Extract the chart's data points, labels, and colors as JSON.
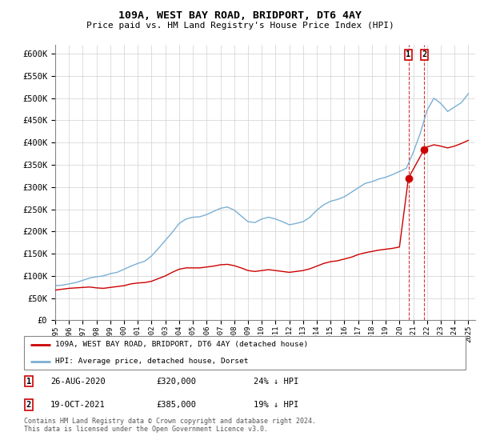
{
  "title": "109A, WEST BAY ROAD, BRIDPORT, DT6 4AY",
  "subtitle": "Price paid vs. HM Land Registry's House Price Index (HPI)",
  "hpi_label": "HPI: Average price, detached house, Dorset",
  "property_label": "109A, WEST BAY ROAD, BRIDPORT, DT6 4AY (detached house)",
  "hpi_color": "#7ab0d4",
  "property_color": "#cc0000",
  "marker_color": "#cc0000",
  "dashed_line_color": "#cc0000",
  "transaction1": {
    "date": "26-AUG-2020",
    "price": 320000,
    "pct": "24% ↓ HPI",
    "year": 2020.65
  },
  "transaction2": {
    "date": "19-OCT-2021",
    "price": 385000,
    "pct": "19% ↓ HPI",
    "year": 2021.8
  },
  "ylim": [
    0,
    620000
  ],
  "yticks": [
    0,
    50000,
    100000,
    150000,
    200000,
    250000,
    300000,
    350000,
    400000,
    450000,
    500000,
    550000,
    600000
  ],
  "footer": "Contains HM Land Registry data © Crown copyright and database right 2024.\nThis data is licensed under the Open Government Licence v3.0.",
  "hpi_years": [
    1995,
    1995.5,
    1996,
    1996.5,
    1997,
    1997.5,
    1998,
    1998.5,
    1999,
    1999.5,
    2000,
    2000.5,
    2001,
    2001.5,
    2002,
    2002.5,
    2003,
    2003.5,
    2004,
    2004.5,
    2005,
    2005.5,
    2006,
    2006.5,
    2007,
    2007.5,
    2008,
    2008.5,
    2009,
    2009.5,
    2010,
    2010.5,
    2011,
    2011.5,
    2012,
    2012.5,
    2013,
    2013.5,
    2014,
    2014.5,
    2015,
    2015.5,
    2016,
    2016.5,
    2017,
    2017.5,
    2018,
    2018.5,
    2019,
    2019.5,
    2020,
    2020.5,
    2021,
    2021.5,
    2022,
    2022.5,
    2023,
    2023.5,
    2024,
    2024.5,
    2025
  ],
  "hpi_values": [
    78000,
    79000,
    82000,
    85000,
    90000,
    95000,
    98000,
    100000,
    105000,
    108000,
    115000,
    122000,
    128000,
    133000,
    145000,
    162000,
    180000,
    198000,
    218000,
    228000,
    232000,
    233000,
    238000,
    245000,
    252000,
    255000,
    248000,
    235000,
    222000,
    220000,
    228000,
    232000,
    228000,
    222000,
    215000,
    218000,
    222000,
    232000,
    248000,
    260000,
    268000,
    272000,
    278000,
    288000,
    298000,
    308000,
    312000,
    318000,
    322000,
    328000,
    335000,
    342000,
    378000,
    420000,
    472000,
    500000,
    488000,
    470000,
    480000,
    490000,
    510000
  ],
  "prop_line_years": [
    1995,
    1995.5,
    1996,
    1996.5,
    1997,
    1997.5,
    1998,
    1998.5,
    1999,
    1999.5,
    2000,
    2000.5,
    2001,
    2001.5,
    2002,
    2002.5,
    2003,
    2003.5,
    2004,
    2004.5,
    2005,
    2005.5,
    2006,
    2006.5,
    2007,
    2007.5,
    2008,
    2008.5,
    2009,
    2009.5,
    2010,
    2010.5,
    2011,
    2011.5,
    2012,
    2012.5,
    2013,
    2013.5,
    2014,
    2014.5,
    2015,
    2015.5,
    2016,
    2016.5,
    2017,
    2017.5,
    2018,
    2018.5,
    2019,
    2019.5,
    2020,
    2020.65,
    2021.8,
    2022,
    2022.5,
    2023,
    2023.5,
    2024,
    2024.5,
    2025
  ],
  "prop_line_values": [
    68000,
    70000,
    72000,
    73000,
    74000,
    75000,
    73000,
    72000,
    74000,
    76000,
    78000,
    82000,
    84000,
    85000,
    88000,
    94000,
    100000,
    108000,
    115000,
    118000,
    118000,
    118000,
    120000,
    122000,
    125000,
    126000,
    123000,
    118000,
    112000,
    110000,
    112000,
    114000,
    112000,
    110000,
    108000,
    110000,
    112000,
    116000,
    122000,
    128000,
    132000,
    134000,
    138000,
    142000,
    148000,
    152000,
    155000,
    158000,
    160000,
    162000,
    165000,
    320000,
    385000,
    390000,
    395000,
    392000,
    388000,
    392000,
    398000,
    405000
  ]
}
